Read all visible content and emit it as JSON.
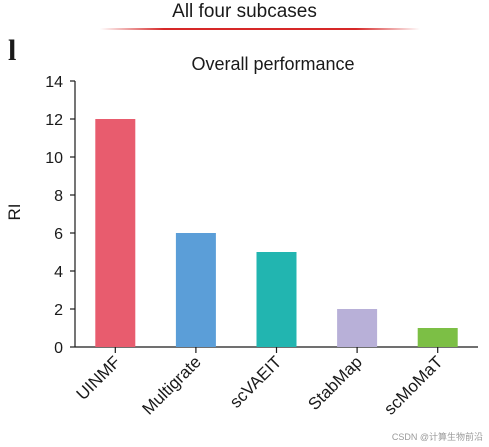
{
  "header": {
    "title": "All four subcases",
    "panel_letter": "l"
  },
  "colors": {
    "header_rule": "#d62828"
  },
  "chart_data": {
    "type": "bar",
    "title": "Overall performance",
    "xlabel": "",
    "ylabel": "RI",
    "categories": [
      "UINMF",
      "Multigrate",
      "scVAEIT",
      "StabMap",
      "scMoMaT"
    ],
    "values": [
      12,
      6,
      5,
      2,
      1
    ],
    "colors": [
      "#e85c6e",
      "#5b9ed8",
      "#22b5b0",
      "#b8b0d8",
      "#7cbf45"
    ],
    "ylim": [
      0,
      14
    ],
    "yticks": [
      "0",
      "2",
      "4",
      "6",
      "8",
      "10",
      "12",
      "14"
    ],
    "grid": false,
    "legend": "none"
  },
  "watermark": "CSDN @计算生物前沿"
}
